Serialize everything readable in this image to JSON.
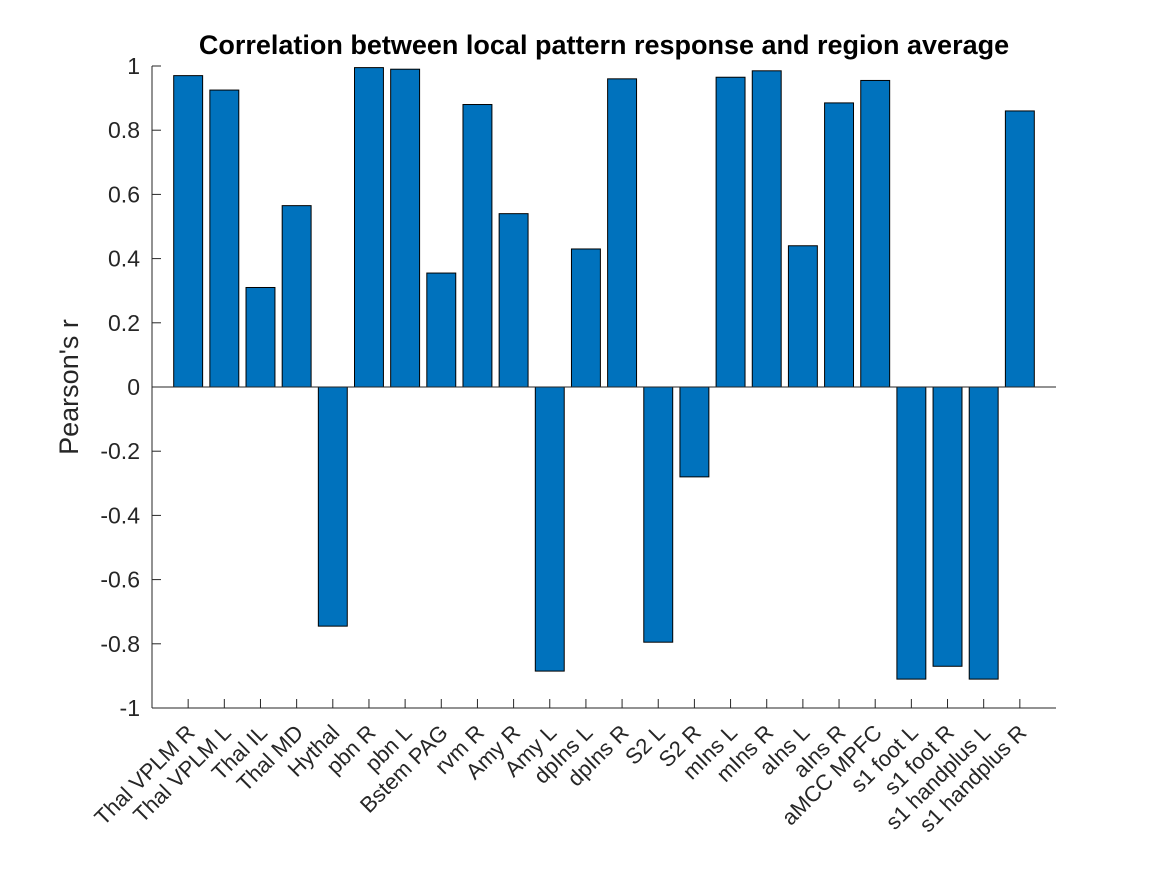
{
  "chart_data": {
    "type": "bar",
    "title": "Correlation between local pattern response and region average",
    "ylabel": "Pearson's r",
    "xlabel": "",
    "ylim": [
      -1,
      1
    ],
    "yticks": [
      "-1",
      "-0.8",
      "-0.6",
      "-0.4",
      "-0.2",
      "0",
      "0.2",
      "0.4",
      "0.6",
      "0.8",
      "1"
    ],
    "categories": [
      "Thal VPLM R",
      "Thal VPLM L",
      "Thal IL",
      "Thal MD",
      "Hythal",
      "pbn R",
      "pbn L",
      "Bstem PAG",
      "rvm R",
      "Amy R",
      "Amy L",
      "dpIns L",
      "dpIns R",
      "S2 L",
      "S2 R",
      "mIns L",
      "mIns R",
      "aIns L",
      "aIns R",
      "aMCC MPFC",
      "s1 foot L",
      "s1 foot R",
      "s1 handplus L",
      "s1 handplus R"
    ],
    "values": [
      0.97,
      0.925,
      0.31,
      0.565,
      -0.745,
      0.995,
      0.99,
      0.355,
      0.88,
      0.54,
      -0.885,
      0.43,
      0.96,
      -0.795,
      -0.28,
      0.965,
      0.985,
      0.44,
      0.885,
      0.955,
      -0.91,
      -0.87,
      -0.91,
      0.86
    ],
    "grid": false,
    "bar_color": "#0072BD",
    "bar_edge_color": "#000000"
  }
}
